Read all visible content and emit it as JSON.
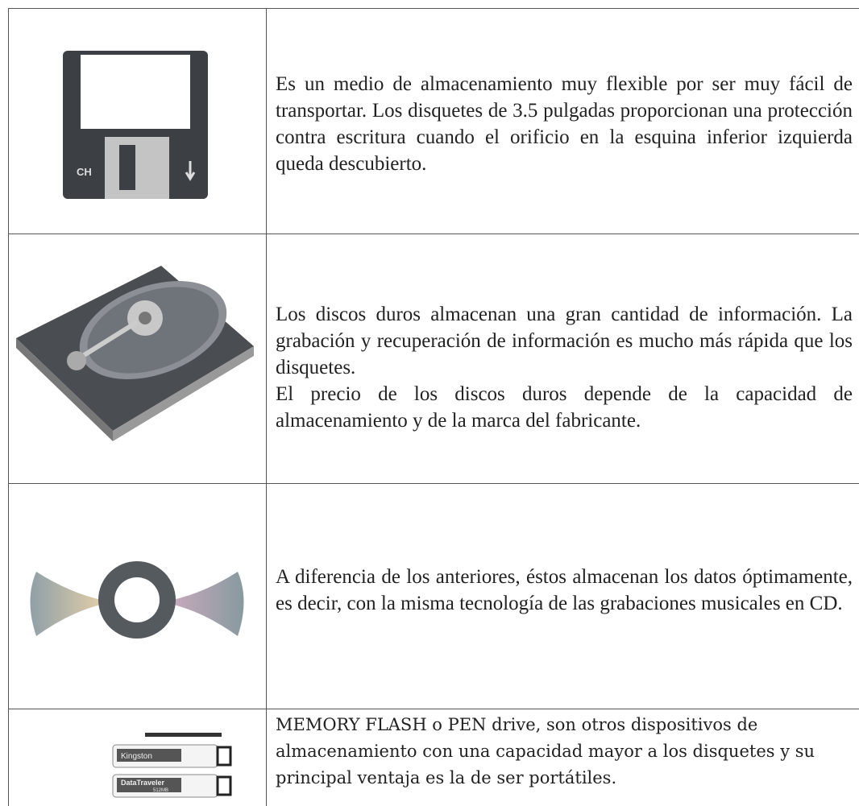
{
  "table": {
    "rows": [
      {
        "icon_text": [
          "CH"
        ],
        "paragraphs": [
          "Es un medio de almacenamiento muy flexible por ser muy fácil de transportar. Los disquetes de 3.5 pulgadas proporcionan una protección contra escritura cuando el orificio en la esquina inferior izquierda queda descubierto."
        ]
      },
      {
        "paragraphs": [
          "Los discos duros almacenan una gran cantidad de información. La grabación y recuperación de información es mucho más rápida que los disquetes.",
          "El precio de los discos duros depende de la capacidad de almacenamiento y de la marca del fabricante."
        ]
      },
      {
        "paragraphs": [
          "A diferencia de los anteriores, éstos almacenan los datos óptimamente, es decir, con la misma tecnología de las grabaciones musicales en CD."
        ]
      },
      {
        "icon_text": [
          "Kingston",
          "DataTraveler",
          "512MB"
        ],
        "paragraphs": [
          "MEMORY FLASH o PEN drive, son otros dispositivos de almacenamiento con una capacidad mayor a los disquetes y su principal ventaja es la de ser portátiles."
        ]
      }
    ]
  }
}
